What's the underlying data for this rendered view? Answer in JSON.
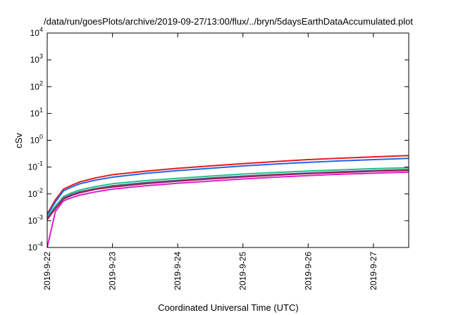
{
  "chart_data": {
    "type": "line",
    "title": "/data/run/goesPlots/archive/2019-09-27/13:00/flux/../bryn/5daysEarthDataAccumulated.plot",
    "xlabel": "Coordinated Universal Time (UTC)",
    "ylabel": "cSv",
    "y_scale": "log",
    "ylim": [
      0.0001,
      10000
    ],
    "xlim": [
      "2019-09-22T00:00",
      "2019-09-27T13:00"
    ],
    "x_tick_labels": [
      "2019-9-22",
      "2019-9-23",
      "2019-9-24",
      "2019-9-25",
      "2019-9-26",
      "2019-9-27"
    ],
    "y_ticks": [
      {
        "value": 0.0001,
        "base": "10",
        "exp": "-4"
      },
      {
        "value": 0.001,
        "base": "10",
        "exp": "-3"
      },
      {
        "value": 0.01,
        "base": "10",
        "exp": "-2"
      },
      {
        "value": 0.1,
        "base": "10",
        "exp": "-1"
      },
      {
        "value": 1,
        "base": "10",
        "exp": "0"
      },
      {
        "value": 10,
        "base": "10",
        "exp": "1"
      },
      {
        "value": 100,
        "base": "10",
        "exp": "2"
      },
      {
        "value": 1000,
        "base": "10",
        "exp": "3"
      },
      {
        "value": 10000,
        "base": "10",
        "exp": "4"
      }
    ],
    "grid": false,
    "legend": "none",
    "x": [
      "2019-09-22T00:00",
      "2019-09-22T03:00",
      "2019-09-22T06:00",
      "2019-09-22T09:00",
      "2019-09-22T12:00",
      "2019-09-22T18:00",
      "2019-09-23T00:00",
      "2019-09-23T12:00",
      "2019-09-24T00:00",
      "2019-09-24T12:00",
      "2019-09-25T00:00",
      "2019-09-25T12:00",
      "2019-09-26T00:00",
      "2019-09-26T12:00",
      "2019-09-27T00:00",
      "2019-09-27T13:00"
    ],
    "series": [
      {
        "color": "#e41a1c",
        "values": [
          0.0018,
          0.006,
          0.015,
          0.021,
          0.028,
          0.04,
          0.052,
          0.07,
          0.09,
          0.11,
          0.135,
          0.16,
          0.19,
          0.215,
          0.24,
          0.27
        ]
      },
      {
        "color": "#2166e8",
        "values": [
          0.0016,
          0.005,
          0.013,
          0.018,
          0.024,
          0.033,
          0.042,
          0.058,
          0.074,
          0.09,
          0.11,
          0.13,
          0.15,
          0.17,
          0.19,
          0.21
        ]
      },
      {
        "color": "#1fc08a",
        "values": [
          0.0014,
          0.0035,
          0.008,
          0.011,
          0.014,
          0.019,
          0.024,
          0.031,
          0.038,
          0.046,
          0.055,
          0.063,
          0.071,
          0.079,
          0.087,
          0.095
        ]
      },
      {
        "color": "#4f5e88",
        "values": [
          0.0012,
          0.003,
          0.007,
          0.0095,
          0.012,
          0.016,
          0.02,
          0.026,
          0.032,
          0.039,
          0.046,
          0.053,
          0.06,
          0.067,
          0.074,
          0.081
        ]
      },
      {
        "color": "#9b1e5a",
        "values": [
          0.0011,
          0.0028,
          0.0065,
          0.0088,
          0.011,
          0.015,
          0.018,
          0.024,
          0.03,
          0.036,
          0.043,
          0.05,
          0.057,
          0.063,
          0.07,
          0.076
        ]
      },
      {
        "color": "#e01fd0",
        "values": [
          0.0001,
          0.0022,
          0.0055,
          0.0072,
          0.009,
          0.012,
          0.015,
          0.02,
          0.025,
          0.03,
          0.036,
          0.042,
          0.048,
          0.054,
          0.059,
          0.065
        ]
      }
    ]
  }
}
